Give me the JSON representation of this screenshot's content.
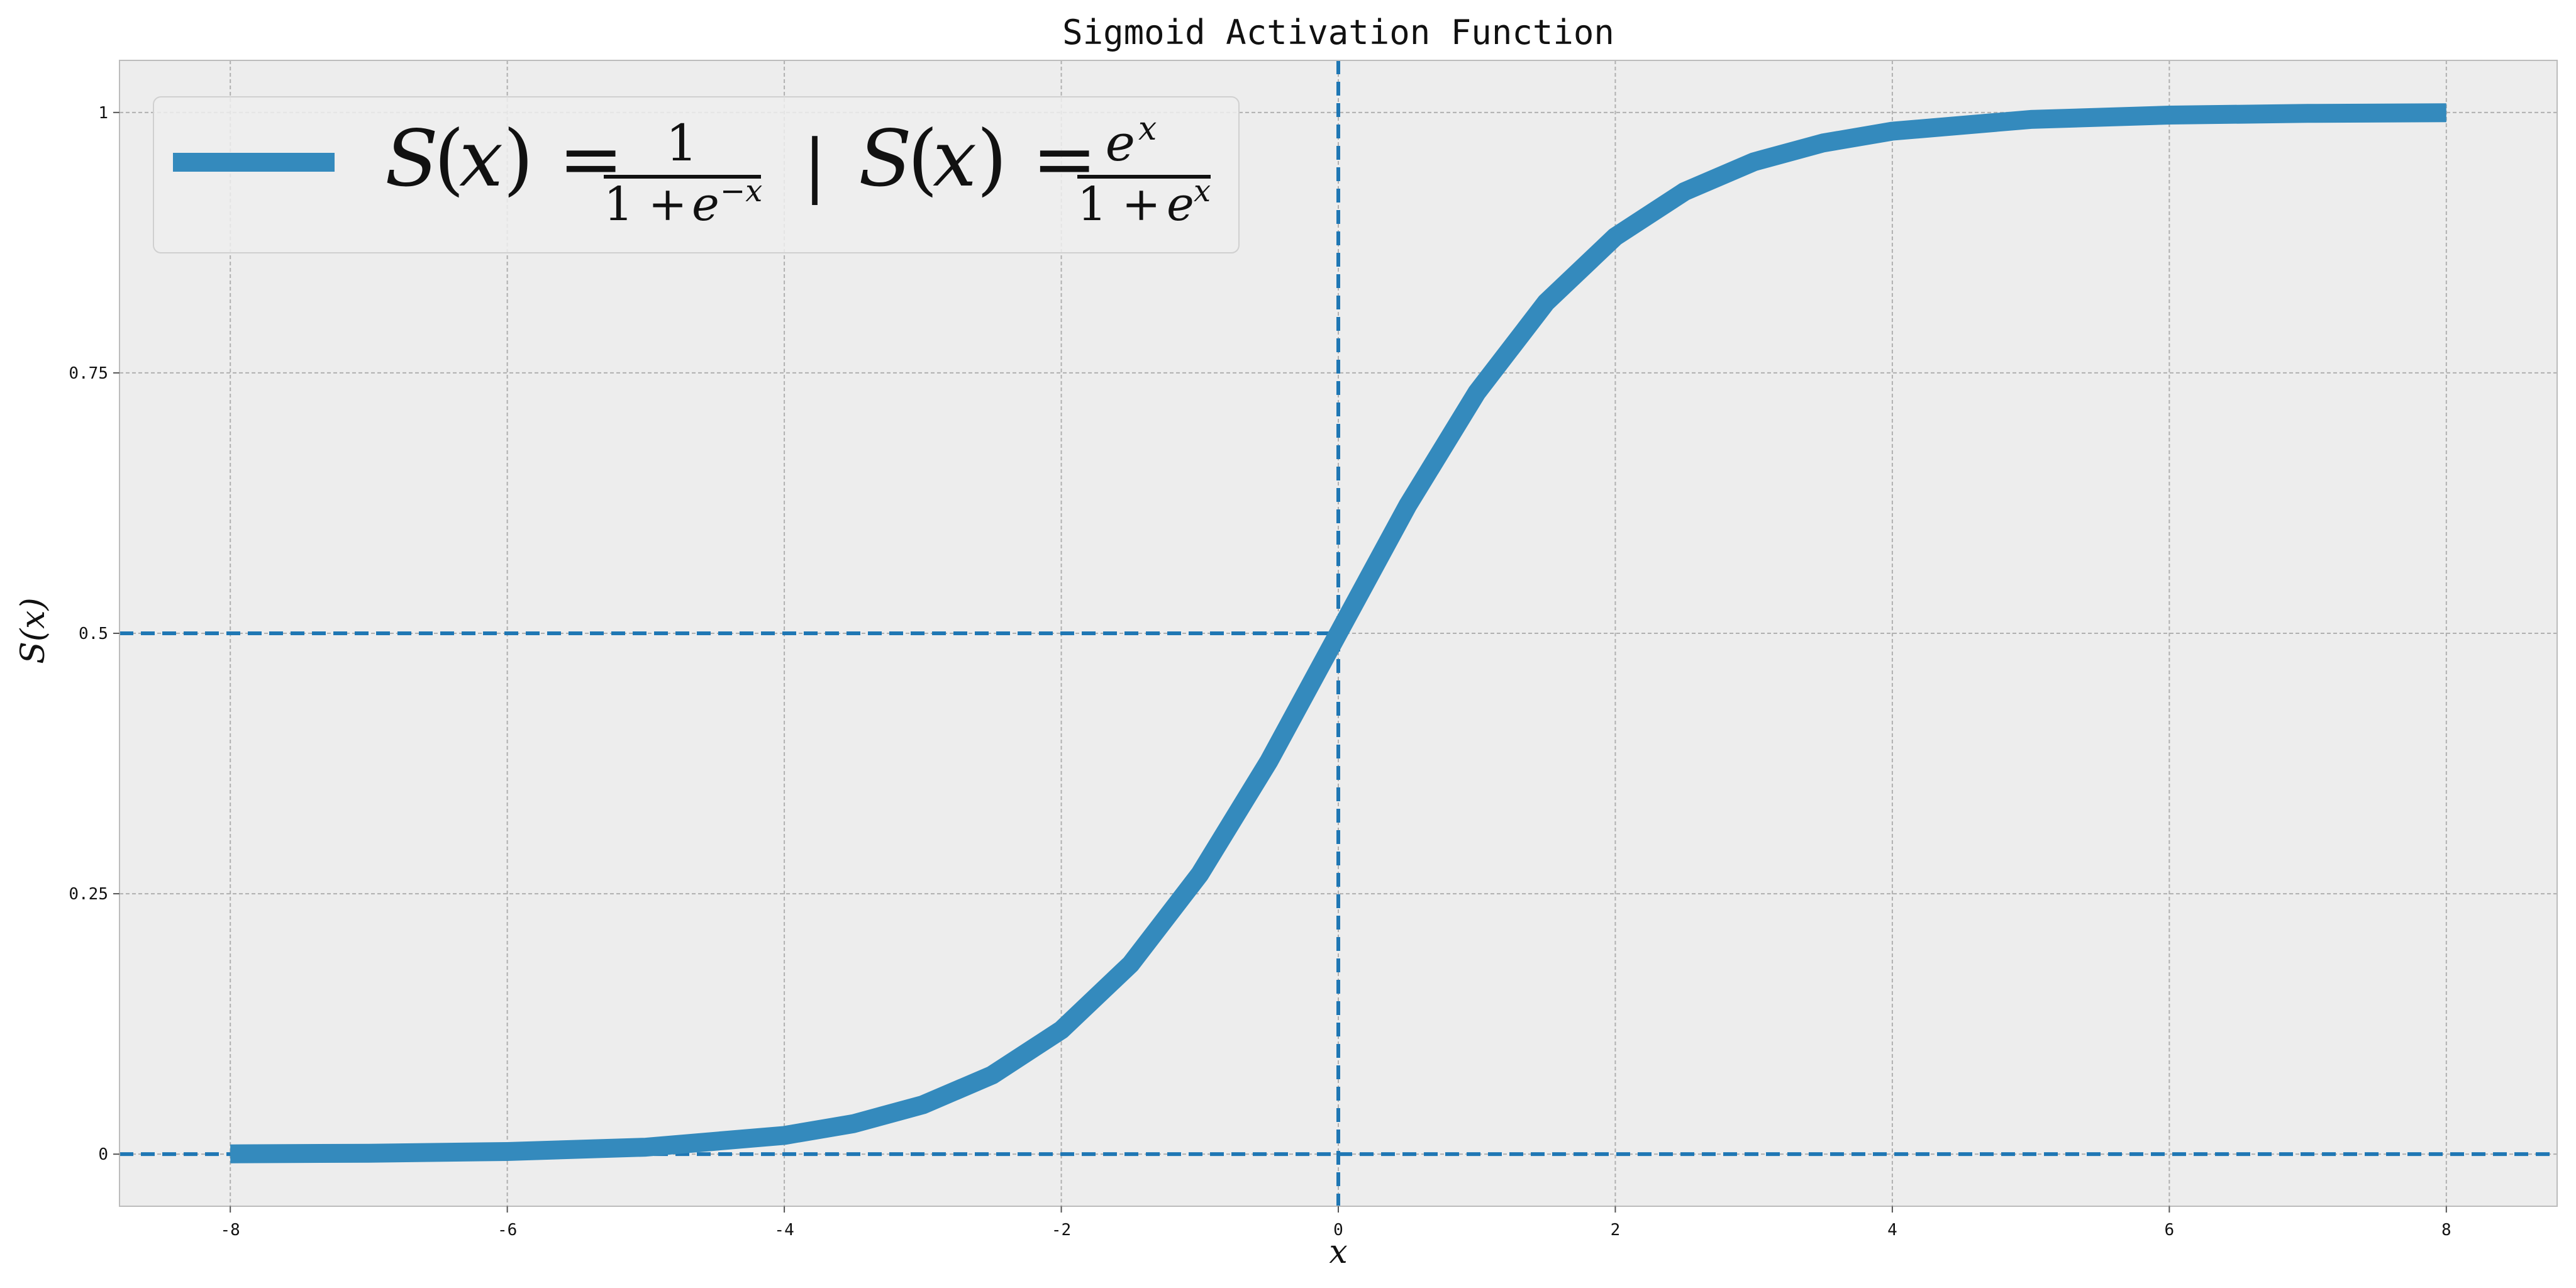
{
  "chart_data": {
    "type": "line",
    "title": "Sigmoid Activation Function",
    "xlabel": "x",
    "ylabel": "S(x)",
    "xlim": [
      -8.8,
      8.8
    ],
    "ylim": [
      -0.05,
      1.05
    ],
    "x_ticks": [
      -8,
      -6,
      -4,
      -2,
      0,
      2,
      4,
      6,
      8
    ],
    "x_tick_labels": [
      "-8",
      "-6",
      "-4",
      "-2",
      "0",
      "2",
      "4",
      "6",
      "8"
    ],
    "y_ticks": [
      0,
      0.25,
      0.5,
      0.75,
      1
    ],
    "y_tick_labels": [
      "0",
      "0.25",
      "0.5",
      "0.75",
      "1"
    ],
    "grid": true,
    "legend_position": "top-left",
    "series": [
      {
        "name": "S(x) = 1/(1+e^-x) | S(x) = e^x/(1+e^x)",
        "color": "#348ABD",
        "x": [
          -8,
          -7,
          -6,
          -5,
          -4,
          -3.5,
          -3,
          -2.5,
          -2,
          -1.5,
          -1,
          -0.5,
          0,
          0.5,
          1,
          1.5,
          2,
          2.5,
          3,
          3.5,
          4,
          5,
          6,
          7,
          8
        ],
        "y": [
          0.0003,
          0.0009,
          0.0025,
          0.0067,
          0.018,
          0.0293,
          0.0474,
          0.0759,
          0.1192,
          0.1824,
          0.2689,
          0.3775,
          0.5,
          0.6225,
          0.7311,
          0.8176,
          0.8808,
          0.9241,
          0.9526,
          0.9707,
          0.982,
          0.9933,
          0.9975,
          0.9991,
          0.9997
        ]
      }
    ],
    "reference_lines": [
      {
        "orientation": "vertical",
        "value": 0,
        "color": "#1f77b4",
        "style": "dashed"
      },
      {
        "orientation": "horizontal",
        "value": 0,
        "color": "#1f77b4",
        "style": "dashed"
      },
      {
        "orientation": "horizontal",
        "value": 0.5,
        "color": "#1f77b4",
        "style": "dashed",
        "x_to": 0
      }
    ],
    "colors": {
      "plot_background": "#EDEDED",
      "grid": "#B0B0B0",
      "axes_border": "#BCBCBC"
    }
  }
}
